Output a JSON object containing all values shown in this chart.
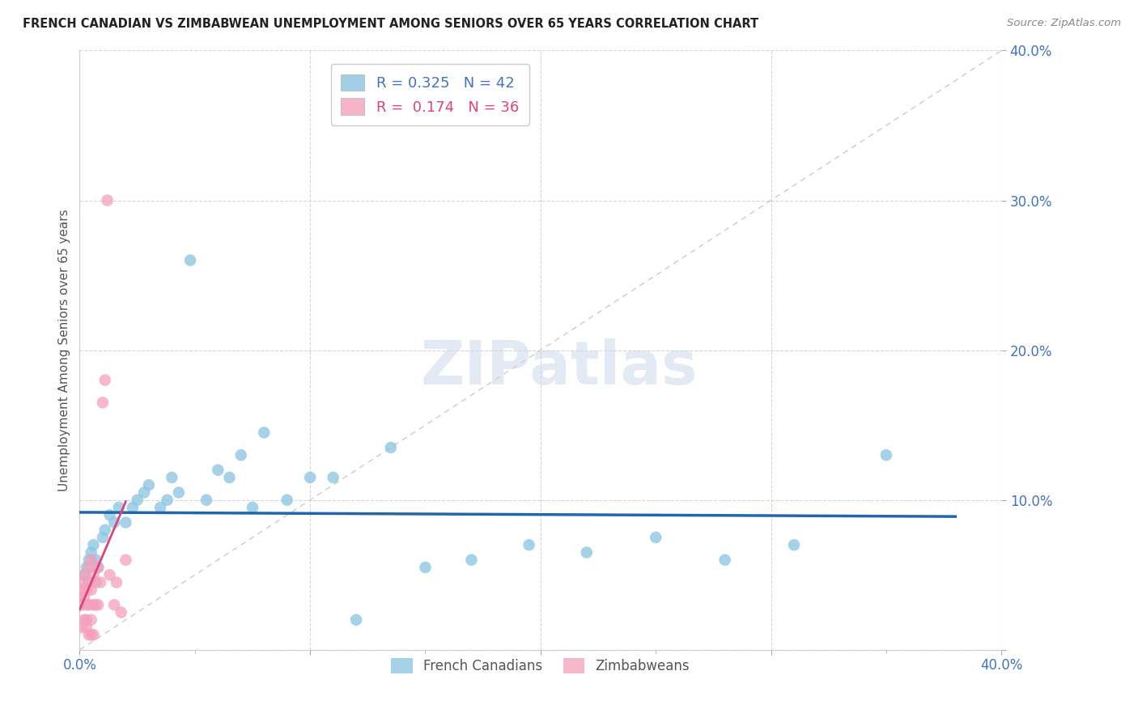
{
  "title": "FRENCH CANADIAN VS ZIMBABWEAN UNEMPLOYMENT AMONG SENIORS OVER 65 YEARS CORRELATION CHART",
  "source": "Source: ZipAtlas.com",
  "ylabel": "Unemployment Among Seniors over 65 years",
  "xlim": [
    0.0,
    0.4
  ],
  "ylim": [
    0.0,
    0.4
  ],
  "xticks": [
    0.0,
    0.1,
    0.2,
    0.3,
    0.4
  ],
  "yticks": [
    0.0,
    0.1,
    0.2,
    0.3,
    0.4
  ],
  "xticklabels_shown": [
    "0.0%",
    "",
    "",
    "",
    "40.0%"
  ],
  "yticklabels_shown": [
    "",
    "10.0%",
    "20.0%",
    "30.0%",
    "40.0%"
  ],
  "x_minor_ticks": [
    0.05,
    0.1,
    0.15,
    0.2,
    0.25,
    0.3,
    0.35
  ],
  "fc_color": "#89c4e0",
  "zim_color": "#f5a0bb",
  "fc_trend_color": "#2166ac",
  "zim_trend_color": "#e0427a",
  "diag_color": "#cccccc",
  "R_fc": "0.325",
  "N_fc": "42",
  "R_zim": "0.174",
  "N_zim": "36",
  "legend_fc_label": "French Canadians",
  "legend_zim_label": "Zimbabweans",
  "legend_fc_text_color": "#4472c4",
  "legend_zim_text_color": "#e0427a",
  "tick_label_color": "#4472c4",
  "watermark_text": "ZIPatlas",
  "french_canadian_x": [
    0.002,
    0.003,
    0.004,
    0.004,
    0.005,
    0.006,
    0.007,
    0.008,
    0.01,
    0.011,
    0.013,
    0.015,
    0.017,
    0.02,
    0.023,
    0.025,
    0.028,
    0.03,
    0.035,
    0.038,
    0.04,
    0.043,
    0.048,
    0.055,
    0.06,
    0.065,
    0.07,
    0.075,
    0.08,
    0.09,
    0.1,
    0.11,
    0.12,
    0.135,
    0.15,
    0.17,
    0.195,
    0.22,
    0.25,
    0.28,
    0.31,
    0.35
  ],
  "french_canadian_y": [
    0.05,
    0.055,
    0.06,
    0.045,
    0.065,
    0.07,
    0.06,
    0.055,
    0.075,
    0.08,
    0.09,
    0.085,
    0.095,
    0.085,
    0.095,
    0.1,
    0.105,
    0.11,
    0.095,
    0.1,
    0.115,
    0.105,
    0.26,
    0.1,
    0.12,
    0.115,
    0.13,
    0.095,
    0.145,
    0.1,
    0.115,
    0.115,
    0.02,
    0.135,
    0.055,
    0.06,
    0.07,
    0.065,
    0.075,
    0.06,
    0.07,
    0.13
  ],
  "zimbabwean_x": [
    0.0,
    0.001,
    0.001,
    0.001,
    0.002,
    0.002,
    0.003,
    0.003,
    0.003,
    0.004,
    0.004,
    0.004,
    0.005,
    0.005,
    0.005,
    0.006,
    0.006,
    0.007,
    0.007,
    0.008,
    0.008,
    0.009,
    0.01,
    0.011,
    0.012,
    0.013,
    0.015,
    0.016,
    0.018,
    0.02,
    0.001,
    0.002,
    0.003,
    0.004,
    0.005,
    0.006
  ],
  "zimbabwean_y": [
    0.035,
    0.04,
    0.045,
    0.03,
    0.05,
    0.035,
    0.04,
    0.03,
    0.02,
    0.055,
    0.045,
    0.03,
    0.06,
    0.04,
    0.02,
    0.05,
    0.03,
    0.045,
    0.03,
    0.055,
    0.03,
    0.045,
    0.165,
    0.18,
    0.3,
    0.05,
    0.03,
    0.045,
    0.025,
    0.06,
    0.015,
    0.02,
    0.015,
    0.01,
    0.01,
    0.01
  ]
}
